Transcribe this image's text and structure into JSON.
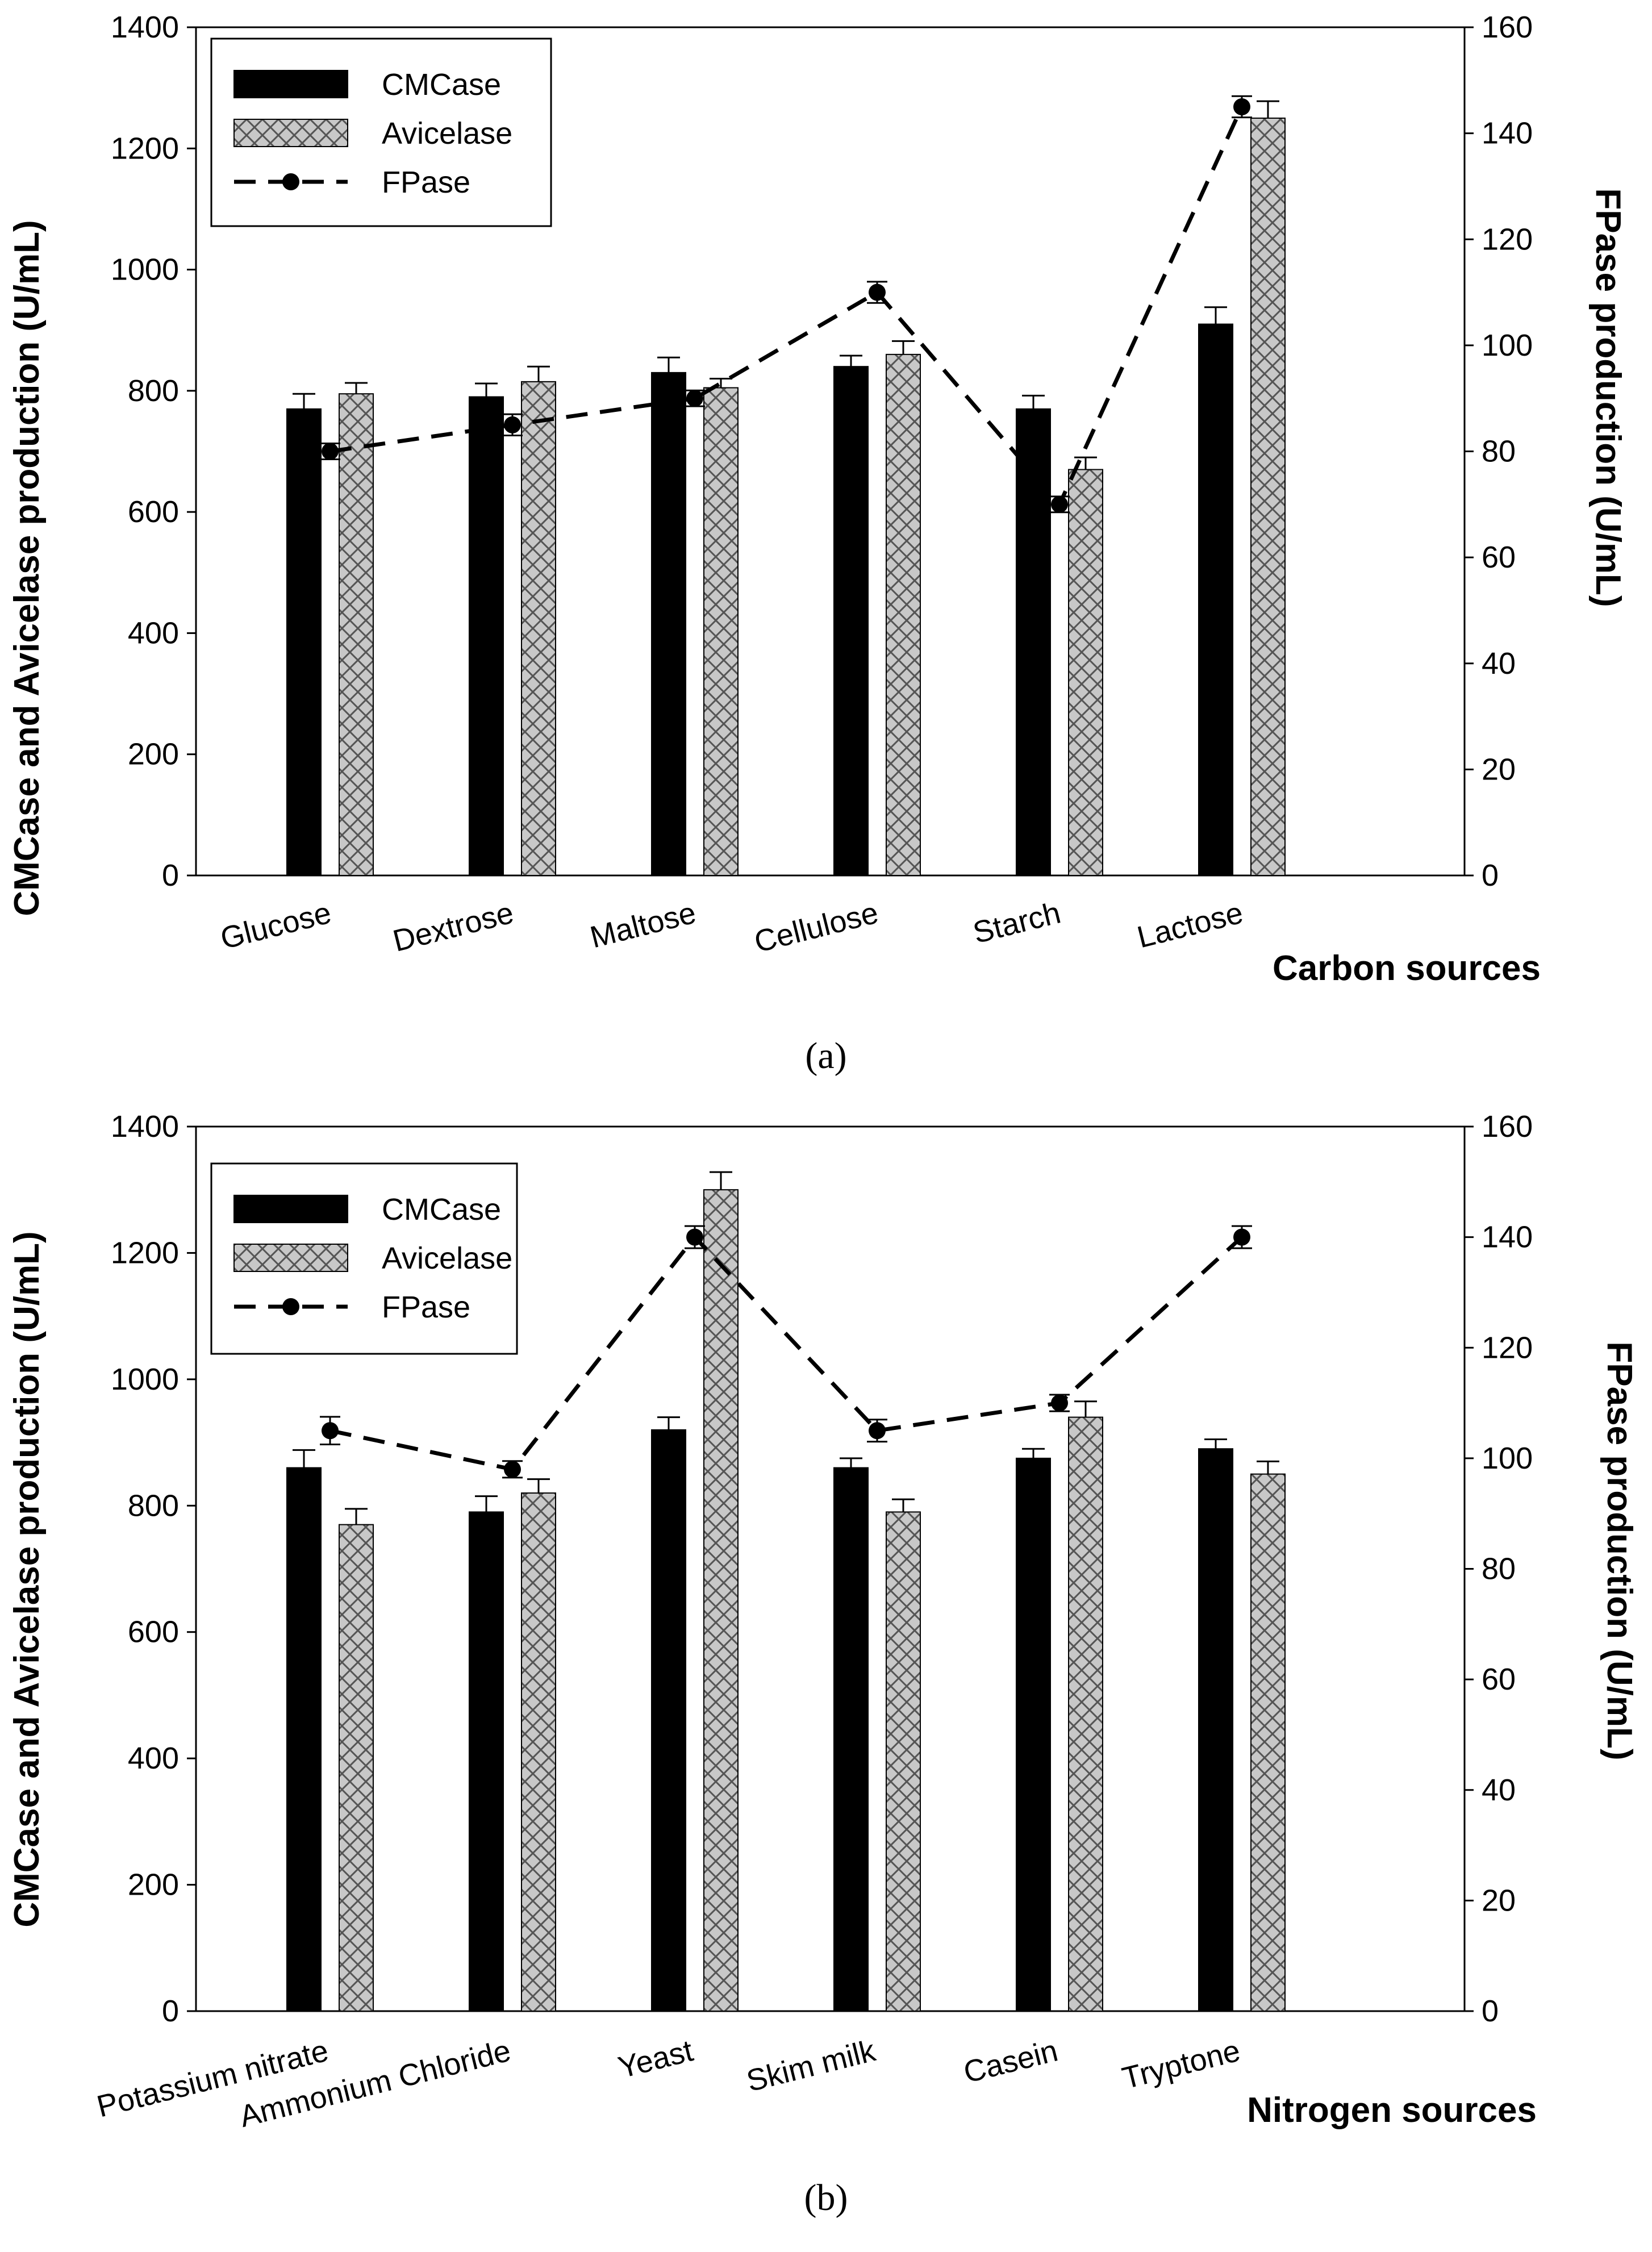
{
  "chart_data": [
    {
      "type": "bar",
      "panel_label": "(a)",
      "categories": [
        "Glucose",
        "Dextrose",
        "Maltose",
        "Cellulose",
        "Starch",
        "Lactose"
      ],
      "xlabel": "Carbon sources",
      "ylabel": "CMCase and Avicelase production (U/mL)",
      "y2label": "FPase production (U/mL)",
      "ylim": [
        0,
        1400
      ],
      "y2lim": [
        0,
        160
      ],
      "yticks": [
        "0",
        "200",
        "400",
        "600",
        "800",
        "1000",
        "1200",
        "1400"
      ],
      "y2ticks": [
        "0",
        "20",
        "40",
        "60",
        "80",
        "100",
        "120",
        "140",
        "160"
      ],
      "series": [
        {
          "name": "CMCase",
          "kind": "bar",
          "fill": "solid",
          "axis": "left",
          "values": [
            770,
            790,
            830,
            840,
            770,
            910
          ],
          "errors": [
            25,
            22,
            25,
            18,
            22,
            28
          ]
        },
        {
          "name": "Avicelase",
          "kind": "bar",
          "fill": "crosshatch",
          "axis": "left",
          "values": [
            795,
            815,
            805,
            860,
            670,
            1250
          ],
          "errors": [
            18,
            25,
            15,
            22,
            20,
            28
          ]
        },
        {
          "name": "FPase",
          "kind": "line",
          "style": "dashed-with-dots",
          "axis": "right",
          "values": [
            80,
            85,
            90,
            110,
            70,
            145
          ],
          "errors": [
            1.5,
            2,
            1.5,
            2,
            1.5,
            2
          ]
        }
      ],
      "legend_position": "top-left"
    },
    {
      "type": "bar",
      "panel_label": "(b)",
      "categories": [
        "Potassium nitrate",
        "Ammonium Chloride",
        "Yeast",
        "Skim milk",
        "Casein",
        "Tryptone"
      ],
      "xlabel": "Nitrogen sources",
      "ylabel": "CMCase and Avicelase production (U/mL)",
      "y2label": "FPase production (U/mL)",
      "ylim": [
        0,
        1400
      ],
      "y2lim": [
        0,
        160
      ],
      "yticks": [
        "0",
        "200",
        "400",
        "600",
        "800",
        "1000",
        "1200",
        "1400"
      ],
      "y2ticks": [
        "0",
        "20",
        "40",
        "60",
        "80",
        "100",
        "120",
        "140",
        "160"
      ],
      "series": [
        {
          "name": "CMCase",
          "kind": "bar",
          "fill": "solid",
          "axis": "left",
          "values": [
            860,
            790,
            920,
            860,
            875,
            890
          ],
          "errors": [
            28,
            25,
            20,
            15,
            15,
            15
          ]
        },
        {
          "name": "Avicelase",
          "kind": "bar",
          "fill": "crosshatch",
          "axis": "left",
          "values": [
            770,
            820,
            1300,
            790,
            940,
            850
          ],
          "errors": [
            25,
            22,
            28,
            20,
            25,
            20
          ]
        },
        {
          "name": "FPase",
          "kind": "line",
          "style": "dashed-with-dots",
          "axis": "right",
          "values": [
            105,
            98,
            140,
            105,
            110,
            140
          ],
          "errors": [
            2.5,
            1.5,
            2,
            2,
            1.5,
            2
          ]
        }
      ],
      "legend_position": "top-left"
    }
  ],
  "colors": {
    "cmcase": "#000000",
    "avicelase": "#c8c8c8",
    "hatch": "#555555",
    "line": "#000000"
  }
}
